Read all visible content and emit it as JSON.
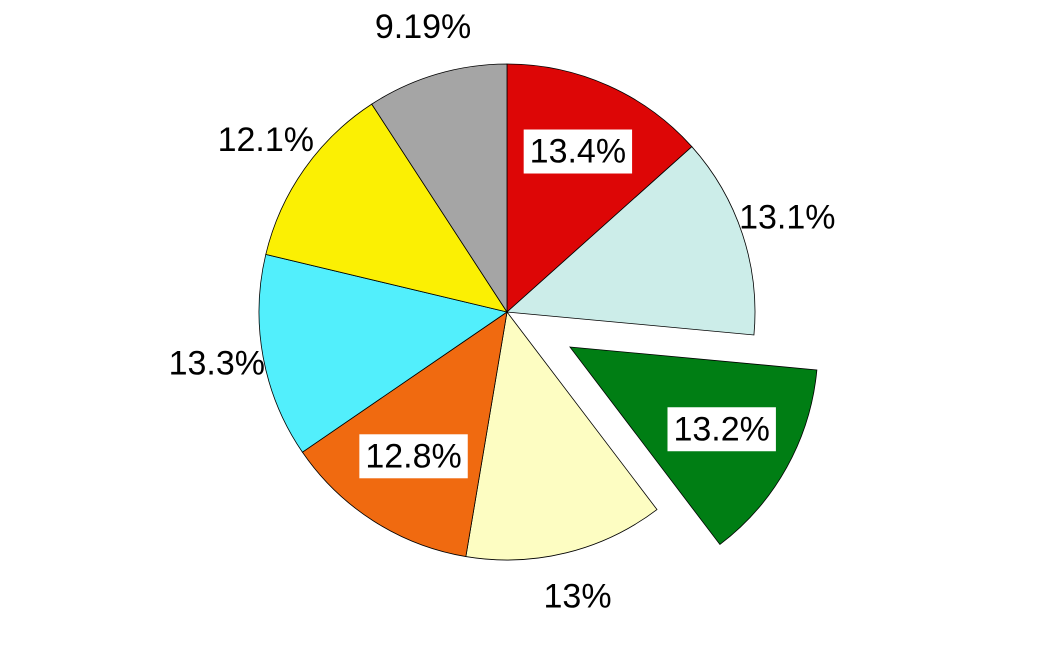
{
  "chart_data": {
    "type": "pie",
    "values": [
      13.4,
      13.1,
      13.2,
      13,
      12.8,
      13.3,
      12.1,
      9.19
    ],
    "value_labels": [
      "13.4%",
      "13.1%",
      "13.2%",
      "13%",
      "12.8%",
      "13.3%",
      "12.1%",
      "9.19%"
    ],
    "colors": [
      "#dd0606",
      "#ccede9",
      "#007e14",
      "#fdfdc2",
      "#f06a10",
      "#52effc",
      "#fbf003",
      "#a5a5a5"
    ]
  }
}
